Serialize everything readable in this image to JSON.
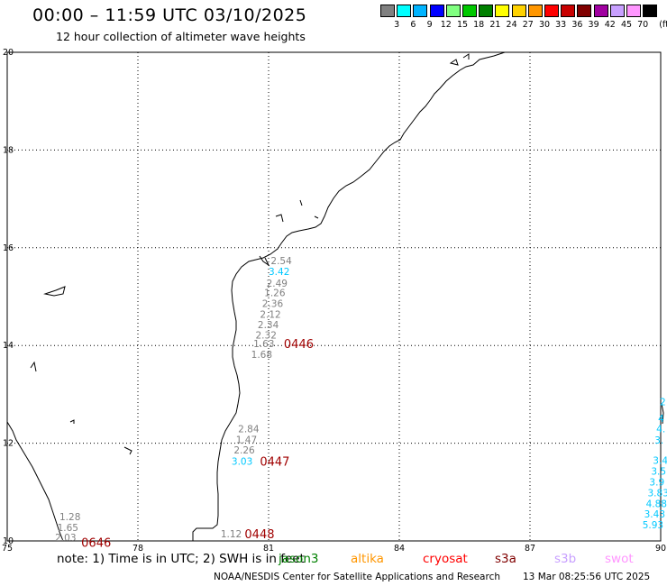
{
  "header": {
    "title": "00:00 – 11:59 UTC 03/10/2025",
    "subtitle": "12 hour collection of altimeter wave heights"
  },
  "legend": {
    "unit": "(ft)",
    "items": [
      {
        "label": "",
        "color": "#808080"
      },
      {
        "label": "3",
        "color": "#00ffff"
      },
      {
        "label": "6",
        "color": "#00b4ff"
      },
      {
        "label": "9",
        "color": "#0000ff"
      },
      {
        "label": "12",
        "color": "#80ff80"
      },
      {
        "label": "15",
        "color": "#00c800"
      },
      {
        "label": "18",
        "color": "#008000"
      },
      {
        "label": "21",
        "color": "#ffff00"
      },
      {
        "label": "24",
        "color": "#ffd200"
      },
      {
        "label": "27",
        "color": "#ff9600"
      },
      {
        "label": "30",
        "color": "#ff0000"
      },
      {
        "label": "33",
        "color": "#c80000"
      },
      {
        "label": "36",
        "color": "#800000"
      },
      {
        "label": "39",
        "color": "#a000a0"
      },
      {
        "label": "42",
        "color": "#c8a0ff"
      },
      {
        "label": "45",
        "color": "#ff96ff"
      },
      {
        "label": "70",
        "color": "#000000"
      }
    ]
  },
  "map": {
    "lat_ticks": [
      "20",
      "18",
      "16",
      "14",
      "12",
      "10"
    ],
    "lon_ticks": [
      "75",
      "78",
      "81",
      "84",
      "87",
      "90"
    ],
    "observations": [
      {
        "text": "2.54",
        "color": "#808080",
        "lon": 81.05,
        "lat": 15.74
      },
      {
        "text": "3.42",
        "color": "#00c8ff",
        "lon": 81.0,
        "lat": 15.52
      },
      {
        "text": "2.49",
        "color": "#808080",
        "lon": 80.95,
        "lat": 15.28
      },
      {
        "text": "1.26",
        "color": "#808080",
        "lon": 80.9,
        "lat": 15.08
      },
      {
        "text": "2.36",
        "color": "#808080",
        "lon": 80.85,
        "lat": 14.86
      },
      {
        "text": "2.12",
        "color": "#808080",
        "lon": 80.8,
        "lat": 14.64
      },
      {
        "text": "2.34",
        "color": "#808080",
        "lon": 80.75,
        "lat": 14.43
      },
      {
        "text": "2.32",
        "color": "#808080",
        "lon": 80.7,
        "lat": 14.22
      },
      {
        "text": "1.63",
        "color": "#808080",
        "lon": 80.65,
        "lat": 14.04
      },
      {
        "text": "1.68",
        "color": "#808080",
        "lon": 80.6,
        "lat": 13.82
      },
      {
        "text": "2.84",
        "color": "#808080",
        "lon": 80.3,
        "lat": 12.3
      },
      {
        "text": "1.47",
        "color": "#808080",
        "lon": 80.25,
        "lat": 12.08
      },
      {
        "text": "2.26",
        "color": "#808080",
        "lon": 80.2,
        "lat": 11.86
      },
      {
        "text": "3.03",
        "color": "#00c8ff",
        "lon": 80.15,
        "lat": 11.63
      },
      {
        "text": "1.28",
        "color": "#808080",
        "lon": 76.2,
        "lat": 10.5
      },
      {
        "text": "1.65",
        "color": "#808080",
        "lon": 76.15,
        "lat": 10.28
      },
      {
        "text": "2.03",
        "color": "#808080",
        "lon": 76.1,
        "lat": 10.07
      },
      {
        "text": "1.12",
        "color": "#808080",
        "lon": 79.9,
        "lat": 10.15
      },
      {
        "text": "2",
        "color": "#00c8ff",
        "lon": 89.98,
        "lat": 12.85
      },
      {
        "text": "4",
        "color": "#00c8ff",
        "lon": 89.94,
        "lat": 12.51
      },
      {
        "text": "4.",
        "color": "#00c8ff",
        "lon": 89.9,
        "lat": 12.3
      },
      {
        "text": "3.",
        "color": "#00c8ff",
        "lon": 89.86,
        "lat": 12.07
      },
      {
        "text": "3.4",
        "color": "#00c8ff",
        "lon": 89.82,
        "lat": 11.65
      },
      {
        "text": "3.5",
        "color": "#00c8ff",
        "lon": 89.78,
        "lat": 11.43
      },
      {
        "text": "3.9",
        "color": "#00c8ff",
        "lon": 89.74,
        "lat": 11.21
      },
      {
        "text": "3.83",
        "color": "#00c8ff",
        "lon": 89.7,
        "lat": 10.99
      },
      {
        "text": "4.88",
        "color": "#00c8ff",
        "lon": 89.66,
        "lat": 10.77
      },
      {
        "text": "3.43",
        "color": "#00c8ff",
        "lon": 89.62,
        "lat": 10.55
      },
      {
        "text": "5.93",
        "color": "#00c8ff",
        "lon": 89.58,
        "lat": 10.33
      }
    ],
    "pass_ids": [
      {
        "text": "0446",
        "lon": 81.35,
        "lat": 14.04
      },
      {
        "text": "0447",
        "lon": 80.8,
        "lat": 11.63
      },
      {
        "text": "0448",
        "lon": 80.45,
        "lat": 10.15
      },
      {
        "text": "0646",
        "lon": 76.7,
        "lat": 9.97
      }
    ]
  },
  "footer": {
    "note_prefix": "note:  1) Time is in UTC;  2) SWH is in feet",
    "satellites": [
      {
        "name": "jason3",
        "color": "#008000"
      },
      {
        "name": "altika",
        "color": "#ff9600"
      },
      {
        "name": "cryosat",
        "color": "#ff0000"
      },
      {
        "name": "s3a",
        "color": "#800000"
      },
      {
        "name": "s3b",
        "color": "#c8a0ff"
      },
      {
        "name": "swot",
        "color": "#ff96ff"
      }
    ],
    "credit": "NOAA/NESDIS Center for Satellite Applications and Research",
    "timestamp": "13 Mar 08:25:56 UTC 2025"
  }
}
